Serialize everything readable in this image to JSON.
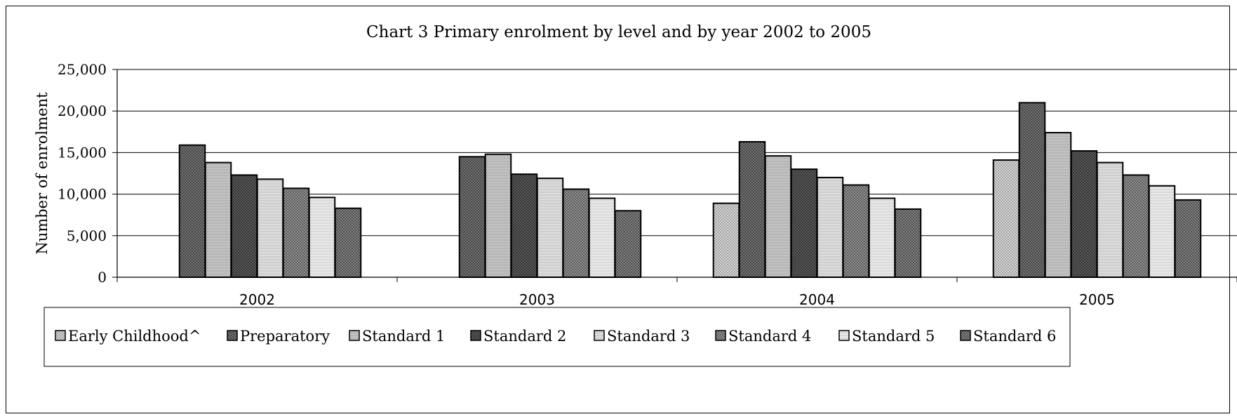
{
  "chart_data": {
    "type": "bar",
    "title": "Chart 3 Primary enrolment by level and by year 2002 to 2005",
    "xlabel": "",
    "ylabel": "Number of enrolment",
    "categories": [
      "2002",
      "2003",
      "2004",
      "2005"
    ],
    "ylim": [
      0,
      25000
    ],
    "yticks": [
      0,
      5000,
      10000,
      15000,
      20000,
      25000
    ],
    "ytick_labels": [
      "0",
      "5,000",
      "10,000",
      "15,000",
      "20,000",
      "25,000"
    ],
    "grid": true,
    "legend_position": "bottom",
    "series": [
      {
        "name": "Early Childhood^",
        "values": [
          null,
          null,
          8900,
          14100
        ],
        "color": "#d6d6d6",
        "pattern": "dots"
      },
      {
        "name": "Preparatory",
        "values": [
          15900,
          14500,
          16300,
          21000
        ],
        "color": "#7a7a7a",
        "pattern": "crosshatch"
      },
      {
        "name": "Standard 1",
        "values": [
          13800,
          14800,
          14600,
          17400
        ],
        "color": "#c2c2c2",
        "pattern": "fine"
      },
      {
        "name": "Standard 2",
        "values": [
          12300,
          12400,
          13000,
          15200
        ],
        "color": "#5e5e5e",
        "pattern": "crosshatch"
      },
      {
        "name": "Standard 3",
        "values": [
          11800,
          11900,
          12000,
          13800
        ],
        "color": "#dcdcdc",
        "pattern": "fine"
      },
      {
        "name": "Standard 4",
        "values": [
          10700,
          10600,
          11100,
          12300
        ],
        "color": "#9c9c9c",
        "pattern": "crosshatch"
      },
      {
        "name": "Standard 5",
        "values": [
          9600,
          9500,
          9500,
          11000
        ],
        "color": "#e8e8e8",
        "pattern": "fine"
      },
      {
        "name": "Standard 6",
        "values": [
          8300,
          8000,
          8200,
          9300
        ],
        "color": "#8a8a8a",
        "pattern": "crosshatch"
      }
    ]
  }
}
